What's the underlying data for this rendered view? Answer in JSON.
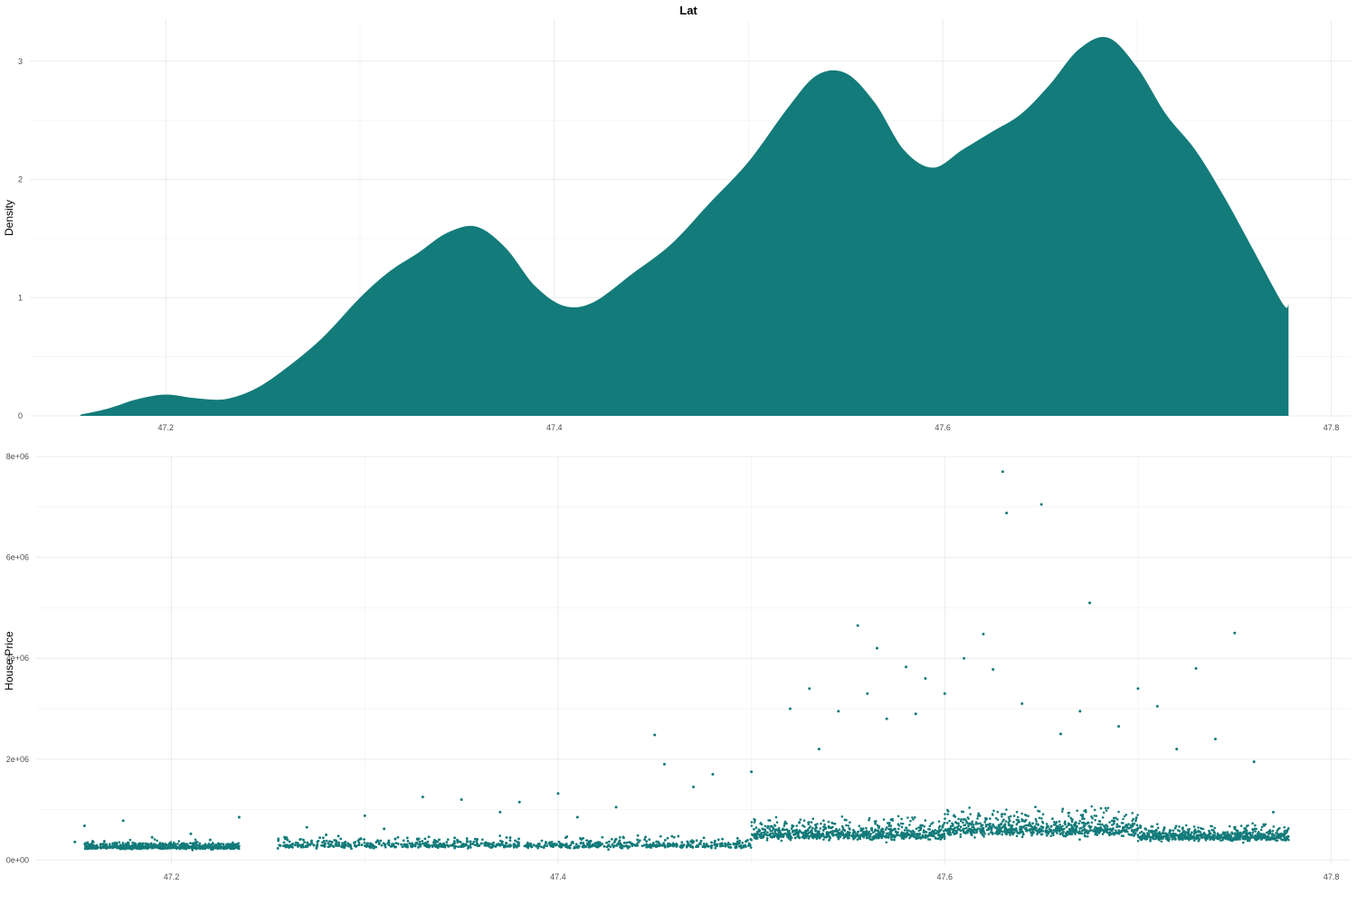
{
  "figure": {
    "title": "Lat"
  },
  "colors": {
    "fill": "#137b7a",
    "background": "#ffffff",
    "grid": "#ebebeb",
    "text": "#000000",
    "tick_text": "#4d4d4d"
  },
  "chart_data": [
    {
      "type": "area",
      "title": "Lat",
      "xlabel": "",
      "ylabel": "Density",
      "xlim": [
        47.13,
        47.81
      ],
      "ylim": [
        0,
        3.35
      ],
      "x_ticks": [
        47.2,
        47.4,
        47.6,
        47.8
      ],
      "x_tick_labels": [
        "47.2",
        "47.4",
        "47.6",
        "47.8"
      ],
      "y_ticks": [
        0,
        1,
        2,
        3
      ],
      "y_tick_labels": [
        "0",
        "1",
        "2",
        "3"
      ],
      "grid": true,
      "series": [
        {
          "x": [
            47.156,
            47.17,
            47.185,
            47.2,
            47.215,
            47.23,
            47.245,
            47.26,
            47.28,
            47.3,
            47.315,
            47.33,
            47.345,
            47.36,
            47.375,
            47.39,
            47.405,
            47.42,
            47.44,
            47.46,
            47.48,
            47.5,
            47.52,
            47.535,
            47.55,
            47.565,
            47.58,
            47.595,
            47.61,
            47.625,
            47.64,
            47.655,
            47.67,
            47.685,
            47.7,
            47.715,
            47.73,
            47.745,
            47.76,
            47.775,
            47.778
          ],
          "y": [
            0.01,
            0.06,
            0.14,
            0.18,
            0.15,
            0.14,
            0.22,
            0.38,
            0.65,
            1.0,
            1.22,
            1.38,
            1.55,
            1.6,
            1.42,
            1.1,
            0.93,
            0.96,
            1.2,
            1.45,
            1.8,
            2.15,
            2.6,
            2.88,
            2.9,
            2.65,
            2.25,
            2.1,
            2.25,
            2.4,
            2.55,
            2.8,
            3.1,
            3.2,
            2.95,
            2.55,
            2.25,
            1.85,
            1.4,
            0.95,
            0.94
          ]
        }
      ]
    },
    {
      "type": "scatter",
      "title": "",
      "xlabel": "",
      "ylabel": "House Price",
      "xlim": [
        47.13,
        47.81
      ],
      "ylim": [
        -100000,
        8000000
      ],
      "x_ticks": [
        47.2,
        47.4,
        47.6,
        47.8
      ],
      "x_tick_labels": [
        "47.2",
        "47.4",
        "47.6",
        "47.8"
      ],
      "y_ticks": [
        0,
        2000000,
        4000000,
        6000000,
        8000000
      ],
      "y_tick_labels": [
        "0e+00",
        "2e+06",
        "4e+06",
        "6e+06",
        "8e+06"
      ],
      "grid": true,
      "series": [
        {
          "x": [
            47.155,
            47.15,
            47.175,
            47.19,
            47.2,
            47.21,
            47.22,
            47.235,
            47.26,
            47.27,
            47.28,
            47.3,
            47.31,
            47.33,
            47.35,
            47.37,
            47.38,
            47.4,
            47.41,
            47.43,
            47.45,
            47.455,
            47.47,
            47.48,
            47.5,
            47.52,
            47.53,
            47.535,
            47.545,
            47.555,
            47.56,
            47.565,
            47.57,
            47.58,
            47.585,
            47.59,
            47.6,
            47.61,
            47.62,
            47.625,
            47.63,
            47.632,
            47.64,
            47.65,
            47.66,
            47.67,
            47.675,
            47.69,
            47.7,
            47.71,
            47.72,
            47.73,
            47.74,
            47.75,
            47.76,
            47.77
          ],
          "y": [
            680000,
            360000,
            780000,
            450000,
            300000,
            520000,
            400000,
            850000,
            400000,
            650000,
            500000,
            880000,
            620000,
            1250000,
            1200000,
            950000,
            1150000,
            1320000,
            850000,
            1050000,
            2480000,
            1900000,
            1450000,
            1700000,
            1750000,
            3000000,
            3400000,
            2200000,
            2950000,
            4650000,
            3300000,
            4200000,
            2800000,
            3830000,
            2900000,
            3600000,
            3300000,
            4000000,
            4480000,
            3780000,
            7700000,
            6880000,
            3100000,
            7050000,
            2500000,
            2950000,
            5100000,
            2650000,
            3400000,
            3050000,
            2200000,
            3800000,
            2400000,
            4500000,
            1950000,
            950000
          ]
        }
      ],
      "bulk_bands": [
        {
          "x_range": [
            47.155,
            47.235
          ],
          "typical": 260000,
          "spread": 110000
        },
        {
          "x_range": [
            47.255,
            47.5
          ],
          "typical": 300000,
          "spread": 160000
        },
        {
          "x_range": [
            47.5,
            47.6
          ],
          "typical": 520000,
          "spread": 300000
        },
        {
          "x_range": [
            47.6,
            47.7
          ],
          "typical": 620000,
          "spread": 380000
        },
        {
          "x_range": [
            47.7,
            47.778
          ],
          "typical": 470000,
          "spread": 220000
        }
      ]
    }
  ]
}
